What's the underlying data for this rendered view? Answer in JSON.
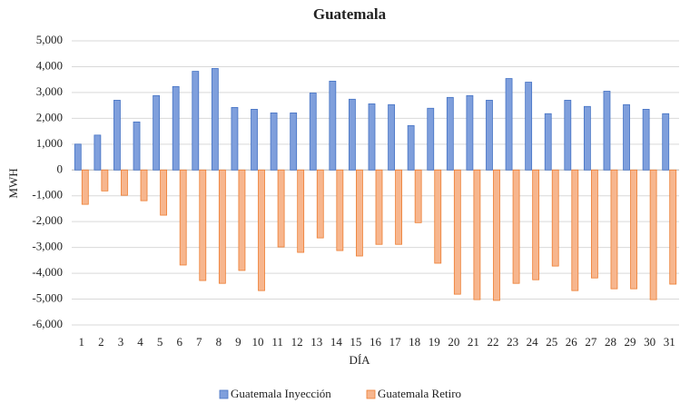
{
  "chart_data": {
    "type": "bar",
    "title": "Guatemala",
    "x_label": "DÍA",
    "y_label": "MWH",
    "categories": [
      "1",
      "2",
      "3",
      "4",
      "5",
      "6",
      "7",
      "8",
      "9",
      "10",
      "11",
      "12",
      "13",
      "14",
      "15",
      "16",
      "17",
      "18",
      "19",
      "20",
      "21",
      "22",
      "23",
      "24",
      "25",
      "26",
      "27",
      "28",
      "29",
      "30",
      "31"
    ],
    "series": [
      {
        "name": "Guatemala Inyección",
        "color": "#7f9fdc",
        "values": [
          1000,
          1350,
          2700,
          1860,
          2880,
          3230,
          3820,
          3930,
          2420,
          2350,
          2210,
          2210,
          2980,
          3440,
          2740,
          2560,
          2530,
          1720,
          2390,
          2810,
          2880,
          2700,
          3540,
          3400,
          2180,
          2700,
          2460,
          3050,
          2530,
          2350,
          2180
        ]
      },
      {
        "name": "Guatemala Retiro",
        "color": "#f7b68e",
        "values": [
          -1330,
          -810,
          -980,
          -1190,
          -1750,
          -3680,
          -4280,
          -4390,
          -3890,
          -4670,
          -2980,
          -3190,
          -2630,
          -3120,
          -3330,
          -2880,
          -2880,
          -2040,
          -3610,
          -4810,
          -5020,
          -5050,
          -4390,
          -4250,
          -3720,
          -4670,
          -4180,
          -4600,
          -4600,
          -5020,
          -4420
        ]
      }
    ],
    "ylim": [
      -6000,
      5000
    ],
    "yticks": [
      {
        "value": -6000,
        "label": "-6,000"
      },
      {
        "value": -5000,
        "label": "-5,000"
      },
      {
        "value": -4000,
        "label": "-4,000"
      },
      {
        "value": -3000,
        "label": "-3,000"
      },
      {
        "value": -2000,
        "label": "-2,000"
      },
      {
        "value": -1000,
        "label": "-1,000"
      },
      0,
      {
        "value": 1000,
        "label": "1,000"
      },
      {
        "value": 2000,
        "label": "2,000"
      },
      {
        "value": 3000,
        "label": "3,000"
      },
      {
        "value": 4000,
        "label": "4,000"
      },
      {
        "value": 5000,
        "label": "5,000"
      }
    ],
    "grid": true,
    "legend": "bottom"
  }
}
